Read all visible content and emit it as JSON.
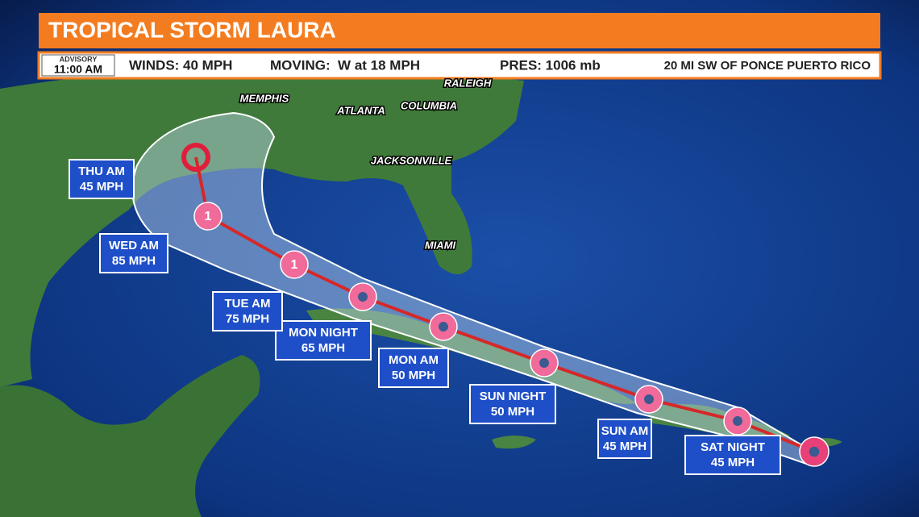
{
  "header": {
    "title": "TROPICAL STORM LAURA"
  },
  "advisory": {
    "label": "ADVISORY",
    "time": "11:00 AM",
    "winds": "WINDS: 40 MPH",
    "moving": "MOVING:  W at 18 MPH",
    "pressure": "PRES: 1006 mb",
    "location": "20 MI SW OF PONCE PUERTO RICO"
  },
  "cities": [
    "MEMPHIS",
    "ATLANTA",
    "COLUMBIA",
    "RALEIGH",
    "JACKSONVILLE",
    "MIAMI"
  ],
  "forecast": [
    {
      "time": "SAT NIGHT",
      "intensity": "45 MPH"
    },
    {
      "time": "SUN AM",
      "intensity": "45 MPH"
    },
    {
      "time": "SUN NIGHT",
      "intensity": "50 MPH"
    },
    {
      "time": "MON AM",
      "intensity": "50 MPH"
    },
    {
      "time": "MON NIGHT",
      "intensity": "65 MPH"
    },
    {
      "time": "TUE AM",
      "intensity": "75 MPH",
      "category": "1"
    },
    {
      "time": "WED AM",
      "intensity": "85 MPH",
      "category": "1"
    },
    {
      "time": "THU AM",
      "intensity": "45 MPH"
    }
  ]
}
